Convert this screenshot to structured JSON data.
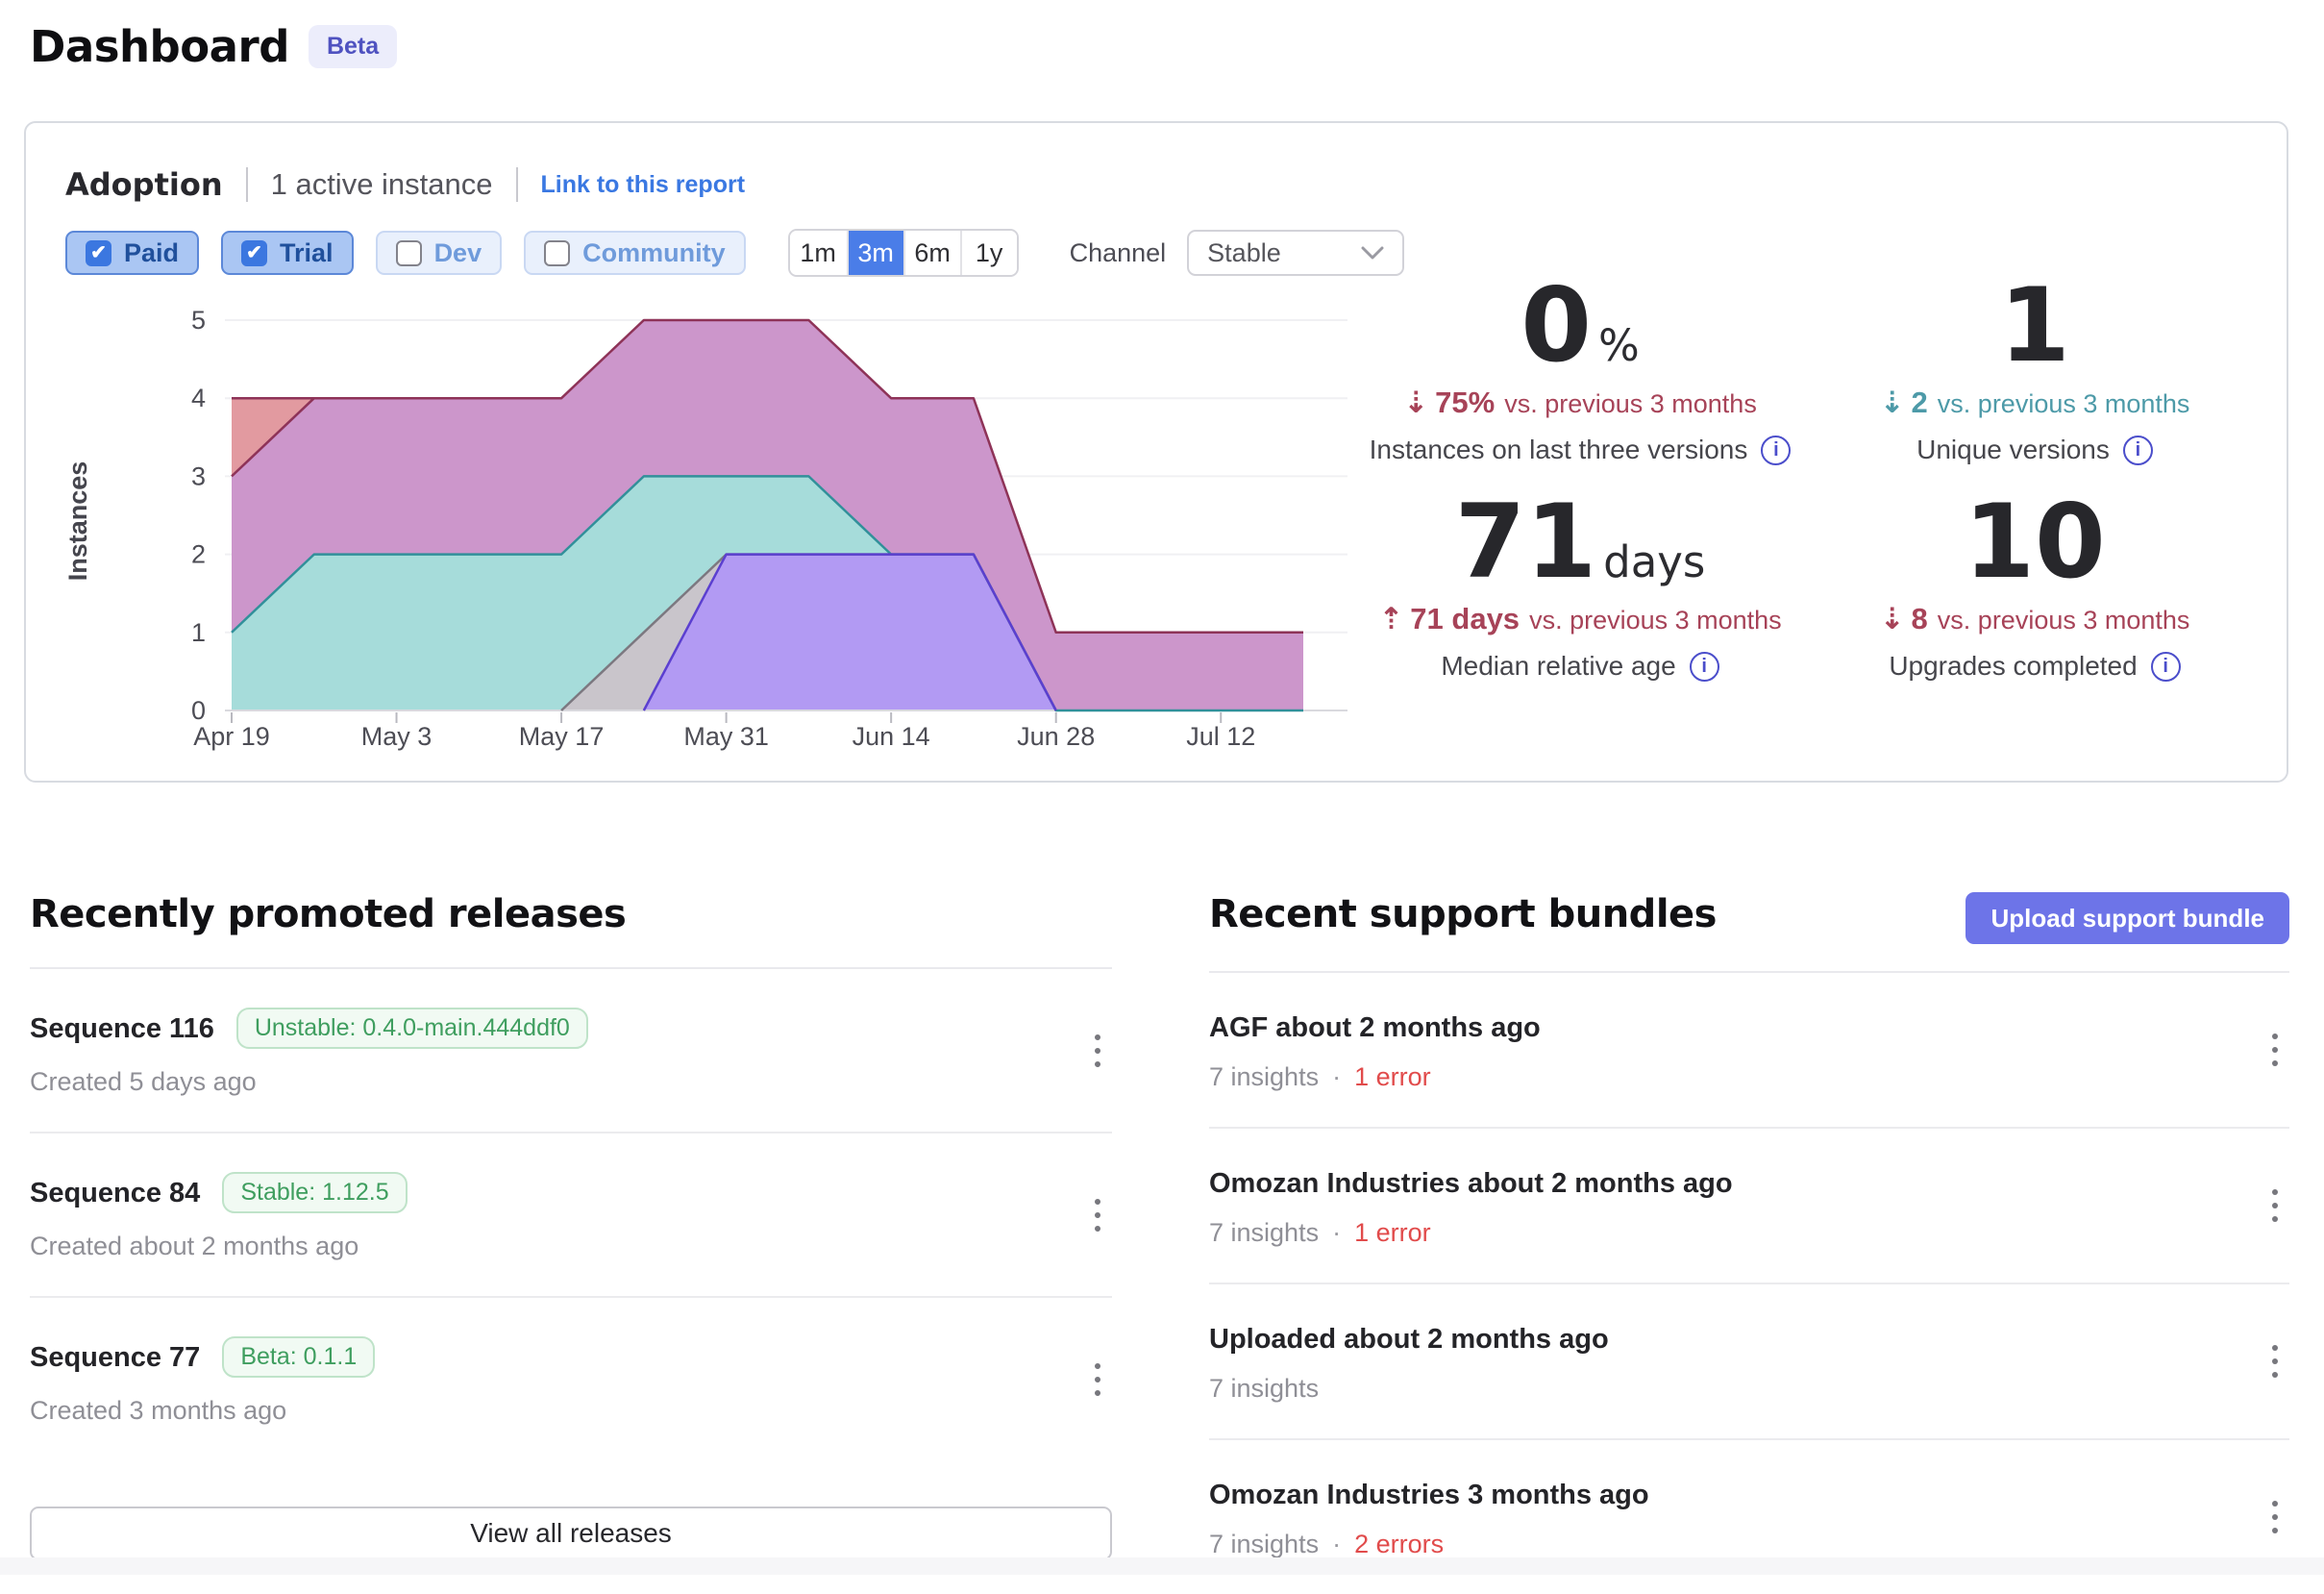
{
  "header": {
    "title": "Dashboard",
    "beta": "Beta"
  },
  "adoption": {
    "title": "Adoption",
    "subtitle": "1 active instance",
    "link_label": "Link to this report",
    "license_filters": [
      {
        "label": "Paid",
        "checked": true
      },
      {
        "label": "Trial",
        "checked": true
      },
      {
        "label": "Dev",
        "checked": false
      },
      {
        "label": "Community",
        "checked": false
      }
    ],
    "time_ranges": [
      "1m",
      "3m",
      "6m",
      "1y"
    ],
    "selected_range": "3m",
    "channel_label": "Channel",
    "channel_value": "Stable",
    "chevron_icon": "chevron-down",
    "tone_colors": {
      "negative": "#a74358",
      "positive": "#4d9aa8"
    },
    "stats": [
      {
        "value": "0",
        "unit": "%",
        "direction": "down",
        "tone": "negative",
        "delta": "75%",
        "delta_caption": "vs. previous 3 months",
        "label": "Instances on last three versions"
      },
      {
        "value": "1",
        "unit": "",
        "direction": "down",
        "tone": "positive",
        "delta": "2",
        "delta_caption": "vs. previous 3 months",
        "label": "Unique versions"
      },
      {
        "value": "71",
        "unit": "days",
        "direction": "up",
        "tone": "negative",
        "delta": "71 days",
        "delta_caption": "vs. previous 3 months",
        "label": "Median relative age"
      },
      {
        "value": "10",
        "unit": "",
        "direction": "down",
        "tone": "negative",
        "delta": "8",
        "delta_caption": "vs. previous 3 months",
        "label": "Upgrades completed"
      }
    ]
  },
  "chart_data": {
    "type": "area",
    "title": "Instances by version over time",
    "ylabel": "Instances",
    "x": [
      "Apr 19",
      "Apr 26",
      "May 3",
      "May 10",
      "May 17",
      "May 24",
      "May 31",
      "Jun 7",
      "Jun 14",
      "Jun 21",
      "Jun 28",
      "Jul 5",
      "Jul 12",
      "Jul 17"
    ],
    "x_tick_labels": [
      "Apr 19",
      "May 3",
      "May 17",
      "May 31",
      "Jun 14",
      "Jun 28",
      "Jul 12"
    ],
    "ylim": [
      0,
      5
    ],
    "yticks": [
      0,
      1,
      2,
      3,
      4,
      5
    ],
    "grid": "horizontal",
    "legend": "none",
    "series": [
      {
        "name": "version-salmon",
        "fill": "#e29aa0",
        "line": "#8e3358",
        "values": [
          4,
          4,
          null,
          null,
          null,
          null,
          null,
          null,
          null,
          null,
          null,
          null,
          null,
          null
        ]
      },
      {
        "name": "version-mauve",
        "fill": "#cc96cb",
        "line": "#8e3358",
        "values": [
          3,
          4,
          4,
          4,
          4,
          5,
          5,
          5,
          4,
          4,
          1,
          1,
          1,
          1
        ]
      },
      {
        "name": "version-teal",
        "fill": "#a6dcda",
        "line": "#31909a",
        "values": [
          1,
          2,
          2,
          2,
          2,
          3,
          3,
          3,
          2,
          2,
          0,
          0,
          0,
          0
        ]
      },
      {
        "name": "version-gray",
        "fill": "#c9c5cb",
        "line": "#7c7880",
        "values": [
          null,
          null,
          null,
          null,
          0,
          1,
          2,
          2,
          2,
          2,
          0,
          null,
          null,
          null
        ]
      },
      {
        "name": "version-purple",
        "fill": "#b29af3",
        "line": "#5b3fd0",
        "values": [
          null,
          null,
          null,
          null,
          null,
          0,
          2,
          2,
          2,
          2,
          0,
          null,
          null,
          null
        ]
      }
    ]
  },
  "releases": {
    "heading": "Recently promoted releases",
    "view_all_label": "View all releases",
    "items": [
      {
        "title": "Sequence 116",
        "badge": "Unstable: 0.4.0-main.444ddf0",
        "created": "Created 5 days ago"
      },
      {
        "title": "Sequence 84",
        "badge": "Stable: 1.12.5",
        "created": "Created about 2 months ago"
      },
      {
        "title": "Sequence 77",
        "badge": "Beta: 0.1.1",
        "created": "Created 3 months ago"
      }
    ]
  },
  "support": {
    "heading": "Recent support bundles",
    "upload_label": "Upload support bundle",
    "items": [
      {
        "title": "AGF about 2 months ago",
        "insights": "7 insights",
        "errors": "1 error"
      },
      {
        "title": "Omozan Industries about 2 months ago",
        "insights": "7 insights",
        "errors": "1 error"
      },
      {
        "title": "Uploaded about 2 months ago",
        "insights": "7 insights",
        "errors": ""
      },
      {
        "title": "Omozan Industries 3 months ago",
        "insights": "7 insights",
        "errors": "2 errors"
      }
    ]
  }
}
